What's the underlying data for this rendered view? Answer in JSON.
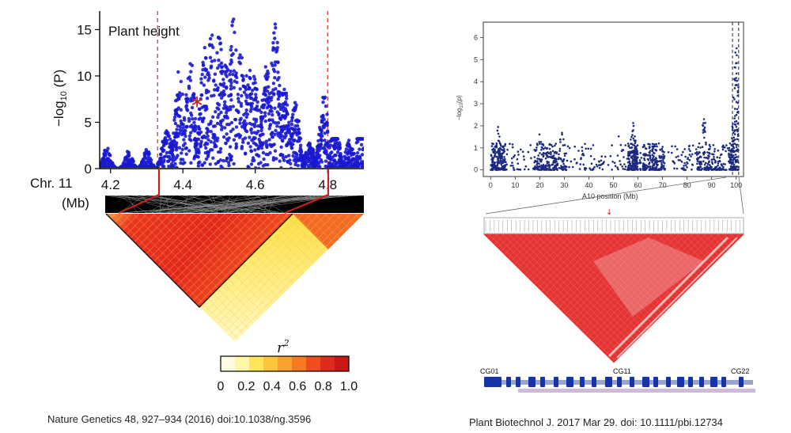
{
  "chart_data": [
    {
      "type": "scatter",
      "panel": "left",
      "title": "Plant height",
      "ylabel_prefix": "−log",
      "ylabel_sub": "10",
      "ylabel_suffix": " (P)",
      "x_axis_name": "Chr. 11",
      "x_unit": "(Mb)",
      "xlim": [
        4.17,
        4.9
      ],
      "ylim": [
        0,
        17
      ],
      "xticks": [
        4.2,
        4.4,
        4.6,
        4.8
      ],
      "xtick_labels": [
        "4.2",
        "4.4",
        "4.6",
        "4.8"
      ],
      "yticks": [
        0,
        5,
        10,
        15
      ],
      "ytick_labels": [
        "0",
        "5",
        "10",
        "15"
      ],
      "highlight_region": [
        4.33,
        4.8
      ],
      "lead_snp": {
        "x": 4.43,
        "y": 7.3
      },
      "series": [
        {
          "name": "SNPs",
          "color": "#1a1ad0",
          "peaks": [
            {
              "x": 4.19,
              "y": 2.5
            },
            {
              "x": 4.25,
              "y": 2.0
            },
            {
              "x": 4.3,
              "y": 2.2
            },
            {
              "x": 4.355,
              "y": 4.5
            },
            {
              "x": 4.39,
              "y": 10.8
            },
            {
              "x": 4.42,
              "y": 12.5
            },
            {
              "x": 4.46,
              "y": 13.5
            },
            {
              "x": 4.48,
              "y": 15.2
            },
            {
              "x": 4.5,
              "y": 14.5
            },
            {
              "x": 4.52,
              "y": 12.3
            },
            {
              "x": 4.54,
              "y": 16.8
            },
            {
              "x": 4.56,
              "y": 13.0
            },
            {
              "x": 4.58,
              "y": 12.0
            },
            {
              "x": 4.6,
              "y": 10.6
            },
            {
              "x": 4.63,
              "y": 11.5
            },
            {
              "x": 4.655,
              "y": 16.6
            },
            {
              "x": 4.68,
              "y": 9.2
            },
            {
              "x": 4.71,
              "y": 7.5
            },
            {
              "x": 4.75,
              "y": 2.8
            },
            {
              "x": 4.79,
              "y": 8.0
            },
            {
              "x": 4.82,
              "y": 6.5
            },
            {
              "x": 4.86,
              "y": 3.2
            },
            {
              "x": 4.89,
              "y": 7.0
            }
          ]
        }
      ],
      "ld_legend": {
        "label": "r",
        "label_sup": "2",
        "ticks": [
          "0",
          "0.2",
          "0.4",
          "0.6",
          "0.8",
          "1.0"
        ],
        "colors": [
          "#fffde0",
          "#fff6a8",
          "#ffe45c",
          "#fdc43c",
          "#f9a12e",
          "#f57a22",
          "#ef4d1e",
          "#e02a1c",
          "#cc1616"
        ]
      }
    },
    {
      "type": "scatter",
      "panel": "right",
      "xlabel": "A10 position (Mb)",
      "ylabel_prefix": "−log",
      "ylabel_sub": "10",
      "ylabel_suffix": "(p)",
      "xlim": [
        -3,
        103
      ],
      "ylim": [
        -0.3,
        6.7
      ],
      "xticks": [
        0,
        10,
        20,
        30,
        40,
        50,
        60,
        70,
        80,
        90,
        100
      ],
      "xtick_labels": [
        "0",
        "10",
        "20",
        "30",
        "40",
        "50",
        "60",
        "70",
        "80",
        "90",
        "100"
      ],
      "yticks": [
        0,
        1,
        2,
        3,
        4,
        5,
        6
      ],
      "ytick_labels": [
        "0",
        "1",
        "2",
        "3",
        "4",
        "5",
        "6"
      ],
      "highlight_region": [
        98.5,
        101.0
      ],
      "series": [
        {
          "name": "SNPs",
          "color": "#1b2a80",
          "peaks": [
            {
              "x": 3,
              "y": 2.0
            },
            {
              "x": 20,
              "y": 1.8
            },
            {
              "x": 29,
              "y": 2.1
            },
            {
              "x": 52,
              "y": 2.6
            },
            {
              "x": 58,
              "y": 2.3
            },
            {
              "x": 68,
              "y": 1.7
            },
            {
              "x": 87,
              "y": 2.8
            },
            {
              "x": 94,
              "y": 2.2
            },
            {
              "x": 100,
              "y": 6.3
            }
          ]
        }
      ],
      "gene_labels": [
        "CG01",
        "CG11",
        "CG22"
      ]
    }
  ],
  "citations": {
    "left": "Nature Genetics 48, 927–934 (2016) doi:10.1038/ng.3596",
    "right": "Plant Biotechnol J. 2017 Mar 29. doi: 10.1111/pbi.12734"
  }
}
